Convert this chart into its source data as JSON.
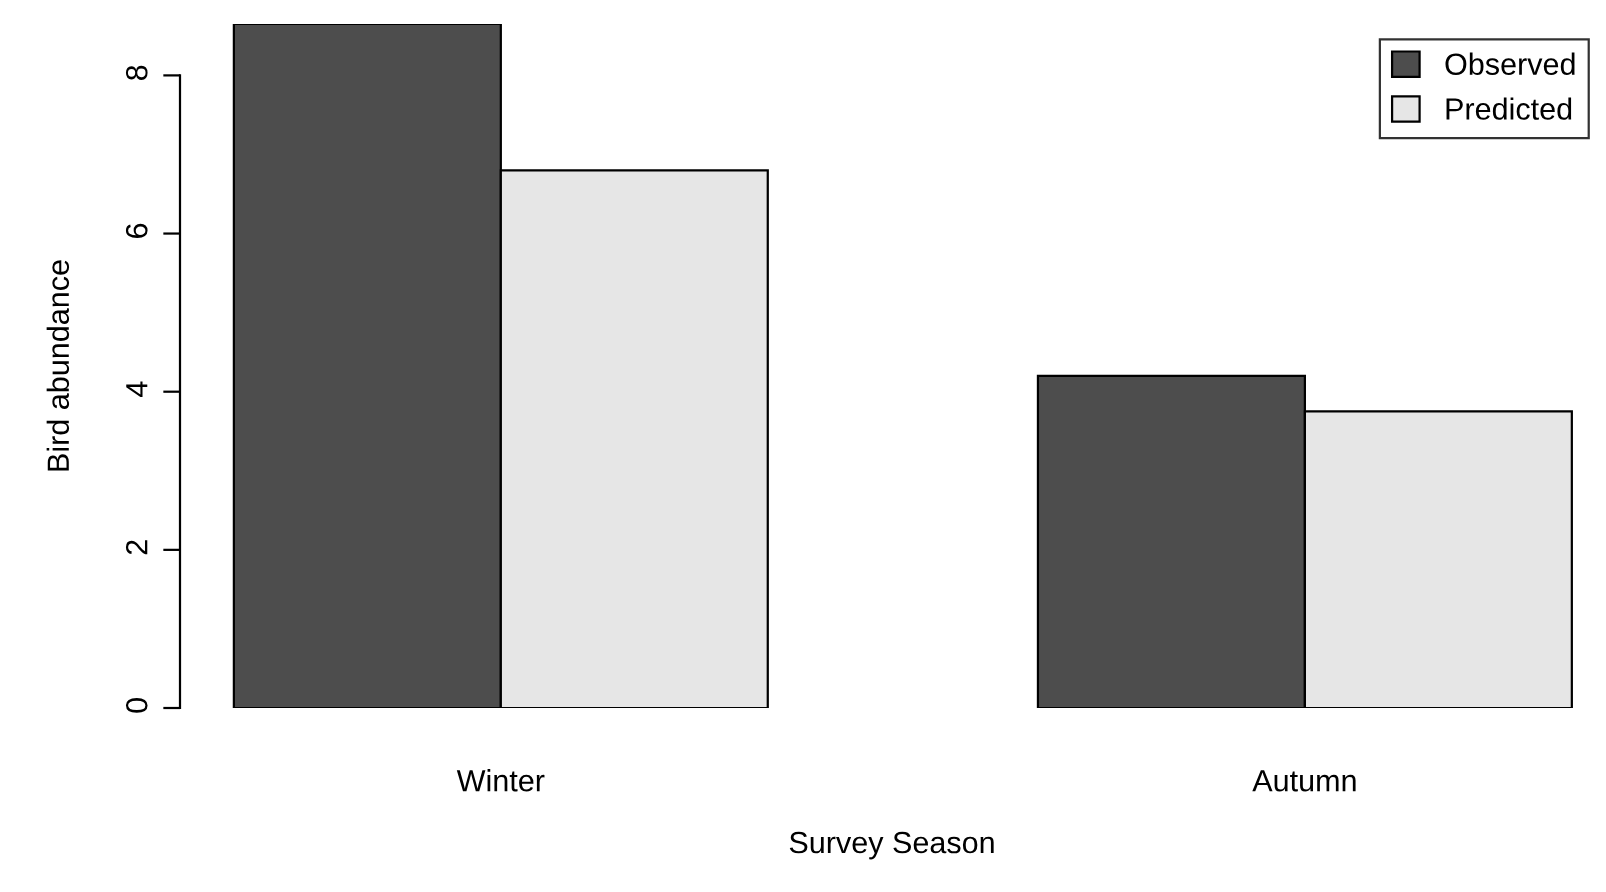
{
  "chart_data": {
    "type": "bar",
    "xlabel": "Survey Season",
    "ylabel": "Bird abundance",
    "categories": [
      "Winter",
      "Autumn"
    ],
    "series": [
      {
        "name": "Observed",
        "color": "#4d4d4d",
        "values": [
          8.65,
          4.2
        ]
      },
      {
        "name": "Predicted",
        "color": "#e6e6e6",
        "values": [
          6.8,
          3.75
        ]
      }
    ],
    "ylim": [
      0,
      8.65
    ],
    "yticks": [
      0,
      2,
      4,
      6,
      8
    ],
    "grid": false,
    "legend": "top right"
  }
}
